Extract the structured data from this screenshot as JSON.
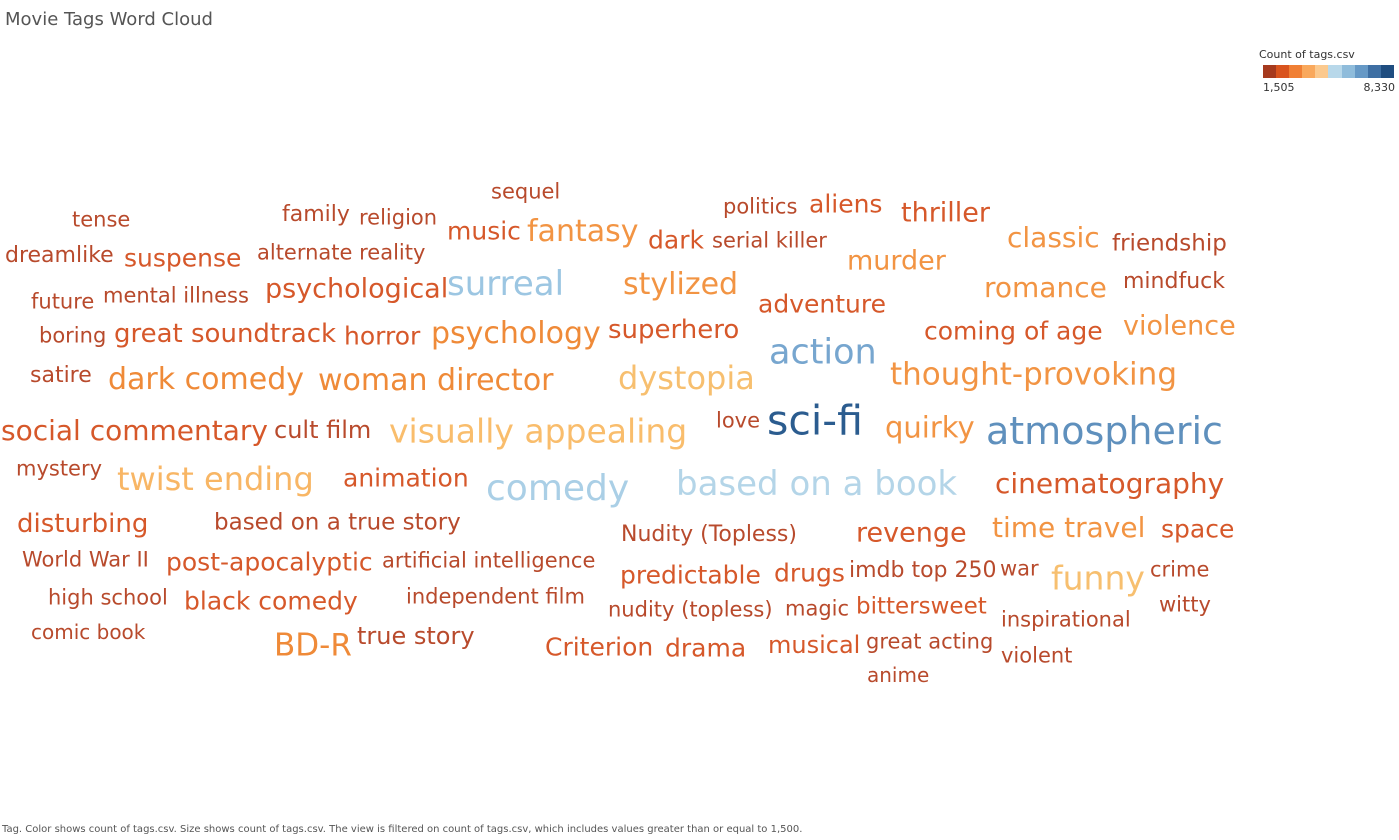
{
  "title": "Movie Tags Word Cloud",
  "legend": {
    "title": "Count of tags.csv",
    "min_label": "1,505",
    "max_label": "8,330",
    "colors": [
      "#a63a1e",
      "#d9541e",
      "#f07f34",
      "#f9a85c",
      "#fbc98e",
      "#b8d8ea",
      "#8fbcdb",
      "#6699c6",
      "#3e6fa3",
      "#1f4d80"
    ]
  },
  "caption": "Tag.  Color shows count of tags.csv.  Size shows count of tags.csv. The view is filtered on count of tags.csv, which includes values greater than or equal to 1,500.",
  "chart_data": {
    "type": "word-cloud",
    "title": "Movie Tags Word Cloud",
    "color_range": [
      1505,
      8330
    ],
    "words": [
      {
        "text": "sci-fi",
        "count": 8330,
        "color": "#2b5c8f"
      },
      {
        "text": "atmospheric",
        "count": 6500,
        "color": "#5f90bd"
      },
      {
        "text": "action",
        "count": 5200,
        "color": "#77a6cf"
      },
      {
        "text": "comedy",
        "count": 4700,
        "color": "#aacfe6"
      },
      {
        "text": "based on a book",
        "count": 4600,
        "color": "#b4d5e8"
      },
      {
        "text": "surreal",
        "count": 4500,
        "color": "#9cc6e2"
      },
      {
        "text": "visually appealing",
        "count": 3800,
        "color": "#f9bd6c"
      },
      {
        "text": "twist ending",
        "count": 3700,
        "color": "#f8b665"
      },
      {
        "text": "dystopia",
        "count": 3600,
        "color": "#f7bf6f"
      },
      {
        "text": "funny",
        "count": 3550,
        "color": "#f7bf6f"
      },
      {
        "text": "thought-provoking",
        "count": 3300,
        "color": "#f29443"
      },
      {
        "text": "dark comedy",
        "count": 3200,
        "color": "#ef8a38"
      },
      {
        "text": "woman director",
        "count": 3100,
        "color": "#ef8a38"
      },
      {
        "text": "psychology",
        "count": 3000,
        "color": "#ef8a38"
      },
      {
        "text": "BD-R",
        "count": 2950,
        "color": "#ef8a38"
      },
      {
        "text": "stylized",
        "count": 2900,
        "color": "#f29443"
      },
      {
        "text": "fantasy",
        "count": 2850,
        "color": "#f29443"
      },
      {
        "text": "romance",
        "count": 2800,
        "color": "#f29443"
      },
      {
        "text": "classic",
        "count": 2750,
        "color": "#f29443"
      },
      {
        "text": "time travel",
        "count": 2700,
        "color": "#f29443"
      },
      {
        "text": "quirky",
        "count": 2650,
        "color": "#f29443"
      },
      {
        "text": "violence",
        "count": 2600,
        "color": "#f29443"
      },
      {
        "text": "murder",
        "count": 2550,
        "color": "#f29443"
      },
      {
        "text": "social commentary",
        "count": 2500,
        "color": "#d6582a"
      },
      {
        "text": "cinematography",
        "count": 2450,
        "color": "#d6582a"
      },
      {
        "text": "superhero",
        "count": 2400,
        "color": "#d6582a"
      },
      {
        "text": "psychological",
        "count": 2350,
        "color": "#d6582a"
      },
      {
        "text": "adventure",
        "count": 2300,
        "color": "#d6582a"
      },
      {
        "text": "revenge",
        "count": 2250,
        "color": "#d6582a"
      },
      {
        "text": "space",
        "count": 2200,
        "color": "#d6582a"
      },
      {
        "text": "disturbing",
        "count": 2150,
        "color": "#d6582a"
      },
      {
        "text": "thriller",
        "count": 2100,
        "color": "#d6582a"
      },
      {
        "text": "coming of age",
        "count": 2050,
        "color": "#d6582a"
      },
      {
        "text": "suspense",
        "count": 2000,
        "color": "#d6582a"
      },
      {
        "text": "great soundtrack",
        "count": 1980,
        "color": "#d6582a"
      },
      {
        "text": "horror",
        "count": 1960,
        "color": "#d6582a"
      },
      {
        "text": "predictable",
        "count": 1940,
        "color": "#d6582a"
      },
      {
        "text": "drugs",
        "count": 1920,
        "color": "#d6582a"
      },
      {
        "text": "black comedy",
        "count": 1900,
        "color": "#d6582a"
      },
      {
        "text": "animation",
        "count": 1880,
        "color": "#d6582a"
      },
      {
        "text": "Criterion",
        "count": 1860,
        "color": "#d6582a"
      },
      {
        "text": "drama",
        "count": 1840,
        "color": "#d6582a"
      },
      {
        "text": "post-apocalyptic",
        "count": 1820,
        "color": "#d6582a"
      },
      {
        "text": "music",
        "count": 1800,
        "color": "#d6582a"
      },
      {
        "text": "aliens",
        "count": 1790,
        "color": "#d6582a"
      },
      {
        "text": "dark",
        "count": 1780,
        "color": "#d6582a"
      },
      {
        "text": "musical",
        "count": 1770,
        "color": "#d6582a"
      },
      {
        "text": "bittersweet",
        "count": 1760,
        "color": "#d6582a"
      },
      {
        "text": "based on a true story",
        "count": 1700,
        "color": "#b84a2c"
      },
      {
        "text": "true story",
        "count": 1690,
        "color": "#b84a2c"
      },
      {
        "text": "cult film",
        "count": 1680,
        "color": "#b84a2c"
      },
      {
        "text": "friendship",
        "count": 1670,
        "color": "#b84a2c"
      },
      {
        "text": "Nudity (Topless)",
        "count": 1660,
        "color": "#b84a2c"
      },
      {
        "text": "World War II",
        "count": 1650,
        "color": "#b84a2c"
      },
      {
        "text": "independent film",
        "count": 1640,
        "color": "#b84a2c"
      },
      {
        "text": "artificial intelligence",
        "count": 1630,
        "color": "#b84a2c"
      },
      {
        "text": "serial killer",
        "count": 1620,
        "color": "#b84a2c"
      },
      {
        "text": "dreamlike",
        "count": 1610,
        "color": "#b84a2c"
      },
      {
        "text": "high school",
        "count": 1600,
        "color": "#b84a2c"
      },
      {
        "text": "family",
        "count": 1595,
        "color": "#b84a2c"
      },
      {
        "text": "religion",
        "count": 1590,
        "color": "#b84a2c"
      },
      {
        "text": "alternate reality",
        "count": 1585,
        "color": "#b84a2c"
      },
      {
        "text": "mental illness",
        "count": 1580,
        "color": "#b84a2c"
      },
      {
        "text": "satire",
        "count": 1575,
        "color": "#b84a2c"
      },
      {
        "text": "mystery",
        "count": 1570,
        "color": "#b84a2c"
      },
      {
        "text": "boring",
        "count": 1565,
        "color": "#b84a2c"
      },
      {
        "text": "future",
        "count": 1560,
        "color": "#b84a2c"
      },
      {
        "text": "tense",
        "count": 1555,
        "color": "#b84a2c"
      },
      {
        "text": "sequel",
        "count": 1550,
        "color": "#b84a2c"
      },
      {
        "text": "politics",
        "count": 1548,
        "color": "#b84a2c"
      },
      {
        "text": "mindfuck",
        "count": 1545,
        "color": "#b84a2c"
      },
      {
        "text": "love",
        "count": 1540,
        "color": "#b84a2c"
      },
      {
        "text": "imdb top 250",
        "count": 1538,
        "color": "#b84a2c"
      },
      {
        "text": "war",
        "count": 1535,
        "color": "#b84a2c"
      },
      {
        "text": "crime",
        "count": 1532,
        "color": "#b84a2c"
      },
      {
        "text": "witty",
        "count": 1530,
        "color": "#b84a2c"
      },
      {
        "text": "inspirational",
        "count": 1528,
        "color": "#b84a2c"
      },
      {
        "text": "nudity (topless)",
        "count": 1525,
        "color": "#b84a2c"
      },
      {
        "text": "magic",
        "count": 1522,
        "color": "#b84a2c"
      },
      {
        "text": "great acting",
        "count": 1520,
        "color": "#b84a2c"
      },
      {
        "text": "violent",
        "count": 1515,
        "color": "#b84a2c"
      },
      {
        "text": "comic book",
        "count": 1510,
        "color": "#b84a2c"
      },
      {
        "text": "anime",
        "count": 1505,
        "color": "#b84a2c"
      }
    ]
  }
}
